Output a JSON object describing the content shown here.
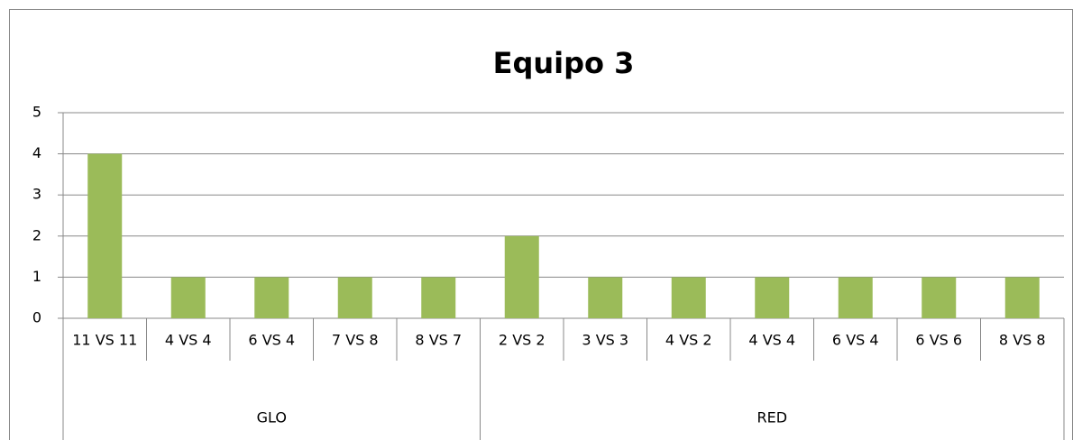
{
  "chart_data": {
    "type": "bar",
    "title": "Equipo 3",
    "groups": [
      {
        "name": "GLO",
        "categories": [
          "11 VS 11",
          "4 VS 4",
          "6 VS 4",
          "7 VS 8",
          "8 VS 7"
        ],
        "values": [
          4,
          1,
          1,
          1,
          1
        ]
      },
      {
        "name": "RED",
        "categories": [
          "2 VS 2",
          "3 VS 3",
          "4 VS 2",
          "4 VS 4",
          "6 VS 4",
          "6 VS 6",
          "8 VS 8"
        ],
        "values": [
          2,
          1,
          1,
          1,
          1,
          1,
          1
        ]
      }
    ],
    "color": "#9bbb59",
    "ylim": [
      0,
      5
    ],
    "yticks": [
      0,
      1,
      2,
      3,
      4,
      5
    ],
    "grid": true
  }
}
